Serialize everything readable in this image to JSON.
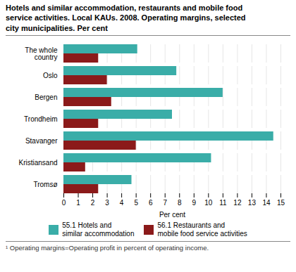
{
  "chart_data": {
    "type": "bar",
    "orientation": "horizontal",
    "title": "Hotels and similar accommodation, restaurants and mobile food\nservice activities. Local KAUs. 2008. Operating margins, selected\ncity municipalities. Per cent",
    "annotations": [
      "¹ Operating margins=Operating profit in percent of operating income."
    ],
    "categories": [
      "The whole\ncountry",
      "Oslo",
      "Bergen",
      "Trondheim",
      "Stavanger",
      "Kristiansand",
      "Tromsø"
    ],
    "series": [
      {
        "name": "55.1 Hotels and\nsimilar accommodation",
        "color": "#3aada8",
        "values": [
          5.1,
          7.8,
          11.0,
          7.5,
          14.5,
          10.2,
          4.7
        ]
      },
      {
        "name": "56.1 Restaurants and\nmobile food service activities",
        "color": "#8b1a1a",
        "values": [
          2.4,
          3.0,
          3.3,
          2.4,
          5.0,
          1.5,
          2.4
        ]
      }
    ],
    "xlabel": "Per cent",
    "xlim": [
      0,
      15
    ],
    "xticks": [
      0,
      1,
      2,
      3,
      4,
      5,
      6,
      7,
      8,
      9,
      10,
      11,
      12,
      13,
      14,
      15
    ],
    "grid": true,
    "legend": "bottom"
  }
}
